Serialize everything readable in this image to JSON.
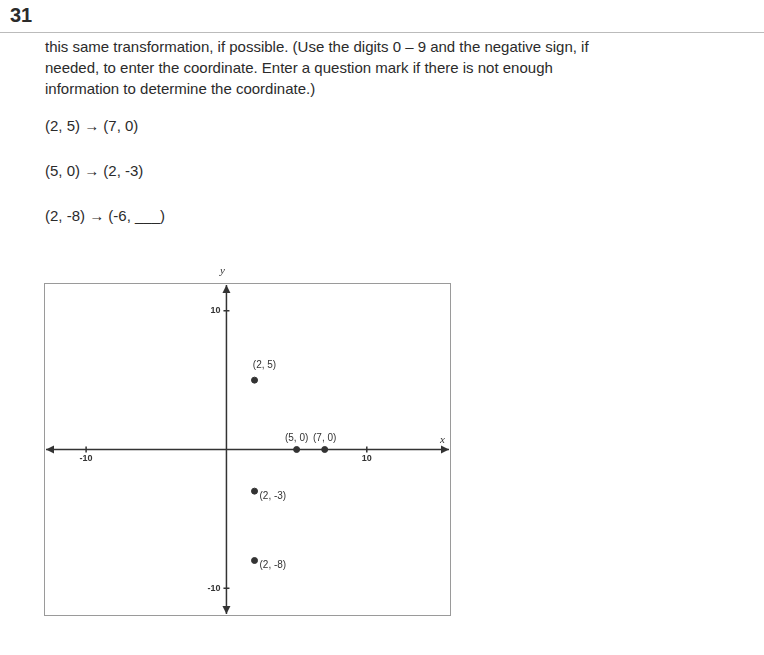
{
  "document": {
    "number": "31",
    "instructions": [
      "this same transformation, if possible. (Use the digits 0 – 9 and the negative sign, if",
      "needed, to enter the coordinate. Enter a question mark if there is not enough",
      "information to determine the coordinate.)"
    ],
    "mappings": [
      "(2, 5) → (7, 0)",
      "(5, 0) → (2, -3)",
      "(2, -8) → (-6, ___)"
    ]
  },
  "chart_data": {
    "type": "scatter",
    "x_label": "x",
    "y_label": "y",
    "x": [
      2,
      5,
      7,
      2,
      2
    ],
    "values": [
      5,
      0,
      0,
      -3,
      -8
    ],
    "value_labels": [
      "(2, 5)",
      "(5, 0)",
      "(7, 0)",
      "(2, -3)",
      "(2, -8)"
    ],
    "color": "#333333",
    "xlim": [
      -13,
      16
    ],
    "ylim": [
      -12,
      12
    ],
    "xticks": [
      -10,
      10
    ],
    "yticks": [
      -10,
      10
    ],
    "grid": false
  }
}
